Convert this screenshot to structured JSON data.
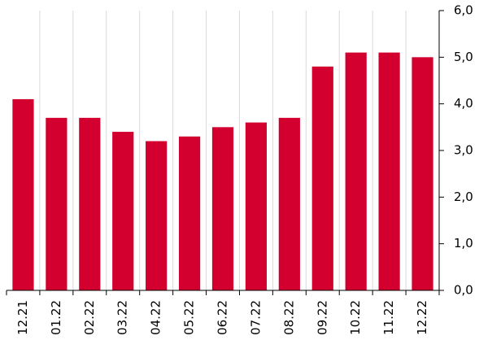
{
  "chart_data": {
    "type": "bar",
    "categories": [
      "12.21",
      "01.22",
      "02.22",
      "03.22",
      "04.22",
      "05.22",
      "06.22",
      "07.22",
      "08.22",
      "09.22",
      "10.22",
      "11.22",
      "12.22"
    ],
    "values": [
      4.1,
      3.7,
      3.7,
      3.4,
      3.2,
      3.3,
      3.5,
      3.6,
      3.7,
      4.8,
      5.1,
      5.1,
      5.0
    ],
    "color": "#d3002f",
    "ylim": [
      0,
      6
    ],
    "yticks": [
      {
        "value": 0,
        "label": "0,0"
      },
      {
        "value": 1,
        "label": "1,0"
      },
      {
        "value": 2,
        "label": "2,0"
      },
      {
        "value": 3,
        "label": "3,0"
      },
      {
        "value": 4,
        "label": "4,0"
      },
      {
        "value": 5,
        "label": "5,0"
      },
      {
        "value": 6,
        "label": "6,0"
      }
    ],
    "grid": true
  }
}
